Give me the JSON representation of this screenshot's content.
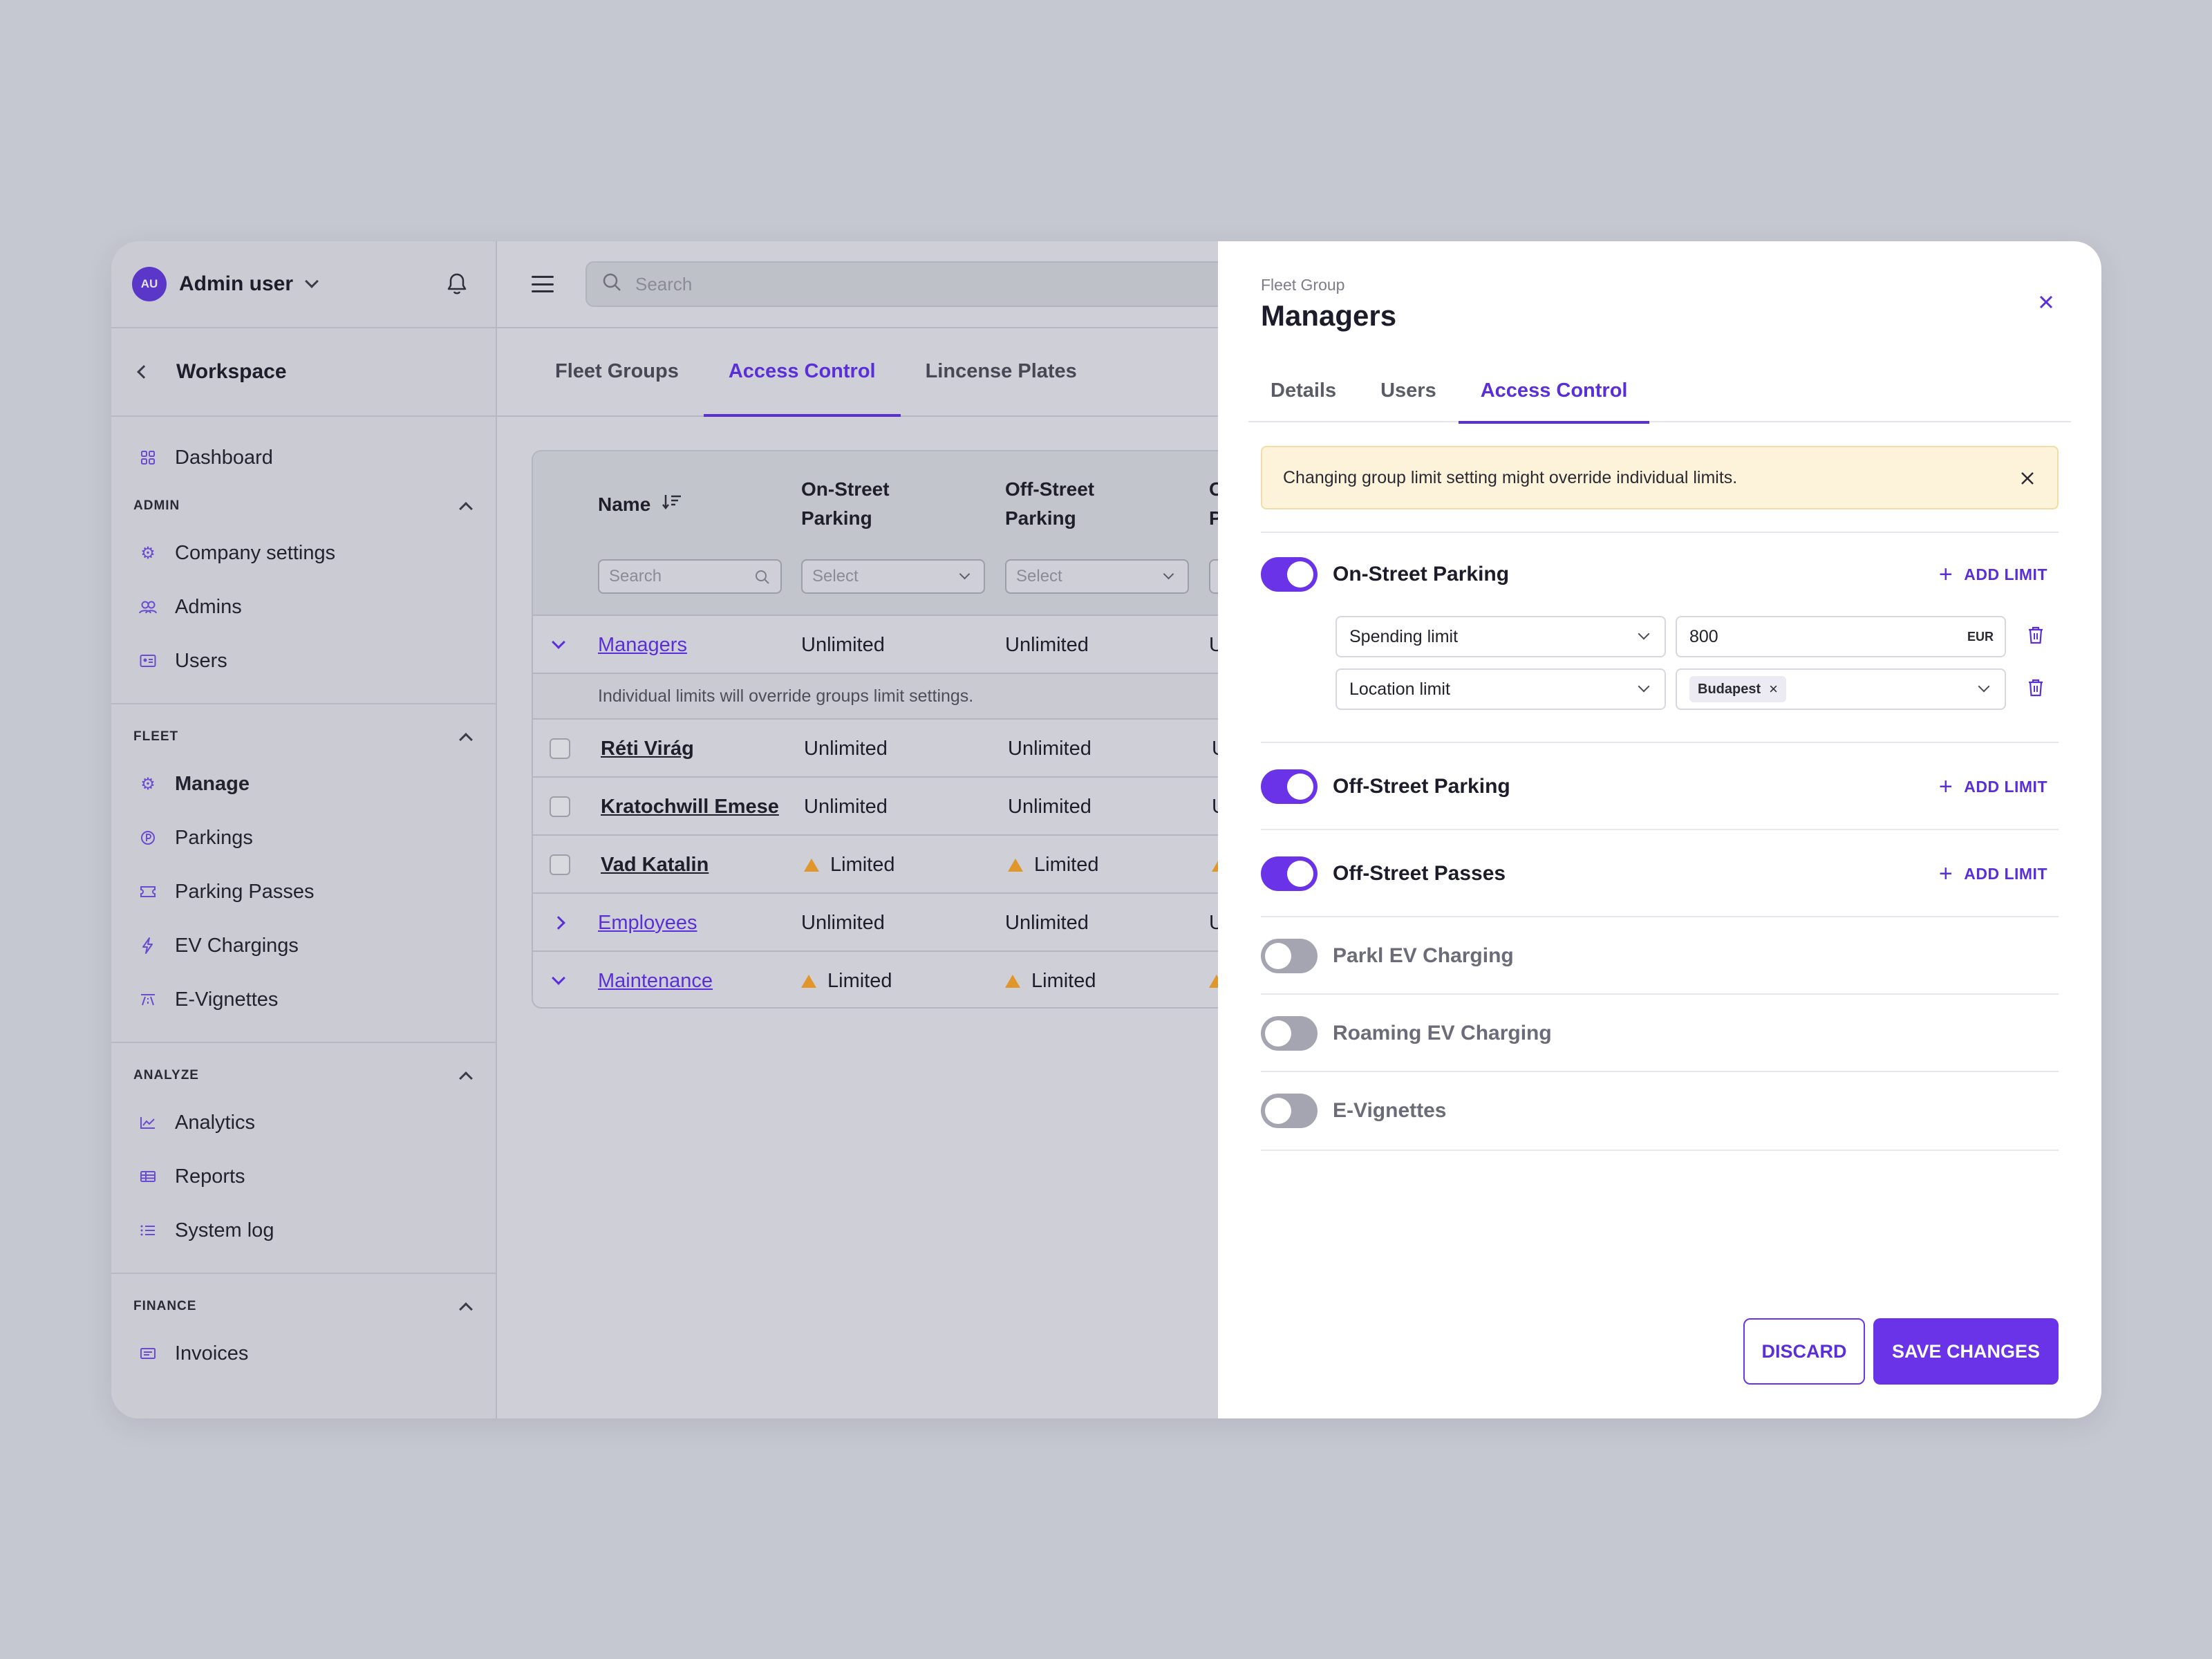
{
  "sidebar": {
    "user": {
      "initials": "AU",
      "name": "Admin user"
    },
    "workspace": "Workspace",
    "dashboard": "Dashboard",
    "sections": {
      "admin": {
        "label": "ADMIN",
        "items": [
          "Company settings",
          "Admins",
          "Users"
        ]
      },
      "fleet": {
        "label": "FLEET",
        "items": [
          "Manage",
          "Parkings",
          "Parking Passes",
          "EV Chargings",
          "E-Vignettes"
        ]
      },
      "analyze": {
        "label": "ANALYZE",
        "items": [
          "Analytics",
          "Reports",
          "System log"
        ]
      },
      "finance": {
        "label": "FINANCE",
        "items": [
          "Invoices"
        ]
      }
    }
  },
  "topbar": {
    "search_placeholder": "Search"
  },
  "main_tabs": [
    "Fleet Groups",
    "Access Control",
    "Lincense Plates"
  ],
  "table": {
    "headers": {
      "name": "Name",
      "on_street_1": "On-Street",
      "on_street_2": "Parking",
      "off_street_1": "Off-Street",
      "off_street_2": "Parking",
      "partial": "O",
      "partial2": "P"
    },
    "filters": {
      "name": "Search",
      "on_street": "Select",
      "off_street": "Select"
    },
    "note": "Individual limits will override groups limit settings.",
    "rows": [
      {
        "name": "Managers",
        "on": "Unlimited",
        "off": "Unlimited",
        "cut": "U"
      },
      {
        "name": "Réti Virág",
        "on": "Unlimited",
        "off": "Unlimited",
        "cut": "U"
      },
      {
        "name": "Kratochwill Emese",
        "on": "Unlimited",
        "off": "Unlimited",
        "cut": "U"
      },
      {
        "name": "Vad Katalin",
        "on": "Limited",
        "off": "Limited"
      },
      {
        "name": "Employees",
        "on": "Unlimited",
        "off": "Unlimited",
        "cut": "U"
      },
      {
        "name": "Maintenance",
        "on": "Limited",
        "off": "Limited"
      }
    ]
  },
  "drawer": {
    "kicker": "Fleet Group",
    "title": "Managers",
    "tabs": [
      "Details",
      "Users",
      "Access Control"
    ],
    "alert": "Changing group limit setting might override individual limits.",
    "add_limit": "ADD LIMIT",
    "services": [
      {
        "label": "On-Street Parking",
        "enabled": true
      },
      {
        "label": "Off-Street Parking",
        "enabled": true
      },
      {
        "label": "Off-Street Passes",
        "enabled": true
      },
      {
        "label": "Parkl EV Charging",
        "enabled": false
      },
      {
        "label": "Roaming EV Charging",
        "enabled": false
      },
      {
        "label": "E-Vignettes",
        "enabled": false
      }
    ],
    "limits": {
      "spending": {
        "type": "Spending limit",
        "value": "800",
        "unit": "EUR"
      },
      "location": {
        "type": "Location limit",
        "chip": "Budapest"
      }
    },
    "discard": "DISCARD",
    "save": "SAVE CHANGES"
  },
  "colors": {
    "accent": "#6a33e8",
    "link": "#5a2fd8",
    "warning": "#e0962a",
    "alert_bg": "#fdf3da"
  }
}
